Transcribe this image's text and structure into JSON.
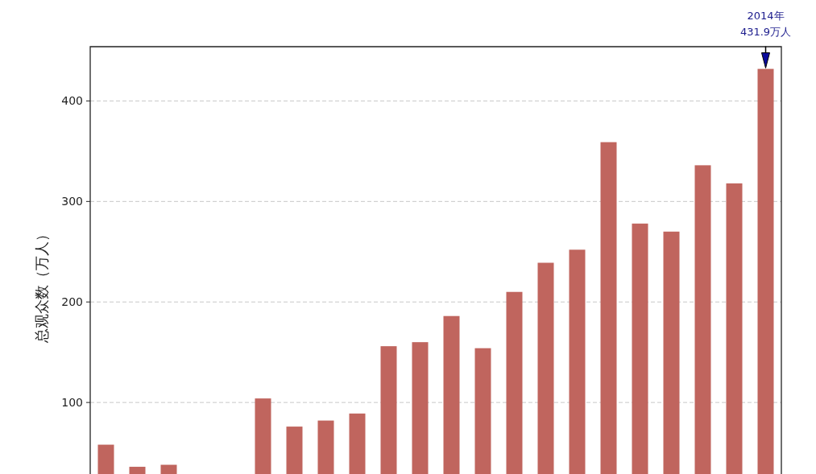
{
  "chart_data": {
    "type": "bar",
    "ylabel": "总观众数（万人）",
    "categories": [
      null,
      null,
      null,
      null,
      null,
      null,
      null,
      null,
      null,
      null,
      null,
      null,
      null,
      null,
      null,
      null,
      null,
      null,
      null,
      null,
      null,
      null
    ],
    "values": [
      58,
      36,
      38,
      null,
      null,
      104,
      76,
      82,
      89,
      156,
      160,
      186,
      154,
      210,
      239,
      252,
      359,
      278,
      270,
      336,
      318,
      431.9
    ],
    "color": "#c0655e",
    "ylim": [
      0,
      454
    ],
    "yticks": [
      100,
      200,
      300,
      400
    ],
    "grid": "y",
    "annotations": [
      "2014年\n431.9万人"
    ]
  }
}
